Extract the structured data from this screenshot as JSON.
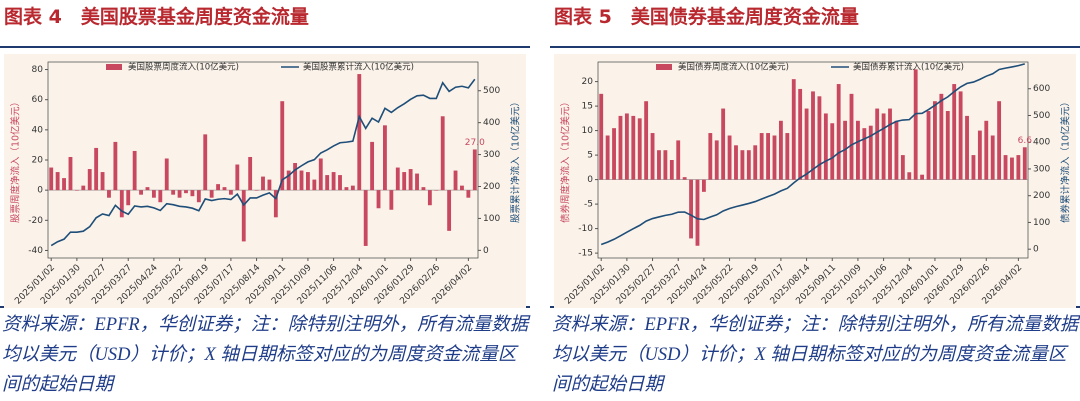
{
  "chart_data": [
    {
      "type": "bar",
      "title": "图表 4　美国股票基金周度资金流量",
      "y_label": "股票周度净流入（10亿美元）",
      "y2_label": "股票累计净流入（10亿美元）",
      "source": "资料来源：EPFR，华创证券；注：除特别注明外，所有流量数据均以美元（USD）计价；X 轴日期标签对应的为周度资金流量区间的起始日期",
      "categories": [
        "2025/01/02",
        null,
        null,
        null,
        "2025/01/30",
        null,
        null,
        null,
        "2025/02/27",
        null,
        null,
        null,
        "2025/03/27",
        null,
        null,
        null,
        "2025/04/24",
        null,
        null,
        null,
        "2025/05/22",
        null,
        null,
        null,
        "2025/06/19",
        null,
        null,
        null,
        "2025/07/17",
        null,
        null,
        null,
        "2025/08/14",
        null,
        null,
        null,
        "2025/09/11",
        null,
        null,
        null,
        "2025/10/09",
        null,
        null,
        null,
        "2025/11/06",
        null,
        null,
        null,
        "2025/12/04",
        null,
        null,
        null,
        "2026/01/01",
        null,
        null,
        null,
        "2026/01/29",
        null,
        null,
        null,
        "2026/02/26",
        null,
        null,
        null,
        null,
        "2026/04/02",
        null
      ],
      "series": [
        {
          "name": "美国股票周度流入(10亿美元)",
          "type": "bar",
          "color": "#c8485f",
          "values": [
            15,
            12,
            8,
            22,
            0,
            3,
            14,
            28,
            12,
            -5,
            32,
            -18,
            -10,
            26,
            -3,
            2,
            -5,
            -8,
            21,
            -3,
            -5,
            -2,
            -4,
            -8,
            37,
            -5,
            4,
            2,
            -3,
            17,
            -34,
            22,
            0,
            9,
            7,
            -18,
            59,
            13,
            18,
            13,
            12,
            7,
            21,
            10,
            12,
            10,
            2,
            3,
            77,
            -37,
            32,
            -12,
            43,
            -13,
            15,
            12,
            14,
            11,
            2,
            -10,
            0,
            49,
            -27,
            13,
            3,
            -5,
            27
          ],
          "value_labels": [
            null,
            null,
            null,
            null,
            null,
            null,
            null,
            null,
            null,
            null,
            null,
            null,
            null,
            null,
            null,
            null,
            null,
            null,
            null,
            null,
            null,
            null,
            null,
            null,
            null,
            null,
            null,
            null,
            null,
            null,
            null,
            null,
            null,
            null,
            null,
            null,
            null,
            null,
            null,
            null,
            null,
            null,
            null,
            null,
            null,
            null,
            null,
            null,
            null,
            null,
            null,
            null,
            null,
            null,
            null,
            null,
            null,
            null,
            null,
            null,
            null,
            null,
            null,
            null,
            null,
            null,
            "27.0"
          ]
        },
        {
          "name": "美国股票累计流入(10亿美元)",
          "type": "line",
          "axis": "y2",
          "color": "#1f4e79",
          "values": [
            15,
            27,
            35,
            57,
            57,
            60,
            74,
            102,
            114,
            109,
            141,
            123,
            113,
            139,
            136,
            138,
            133,
            125,
            146,
            143,
            138,
            136,
            132,
            124,
            161,
            156,
            160,
            162,
            159,
            176,
            142,
            164,
            164,
            173,
            180,
            162,
            221,
            234,
            252,
            265,
            277,
            284,
            305,
            315,
            327,
            337,
            339,
            342,
            419,
            382,
            414,
            402,
            445,
            432,
            447,
            459,
            473,
            484,
            486,
            476,
            476,
            525,
            498,
            511,
            514,
            509,
            536
          ]
        }
      ],
      "ylim": [
        -45,
        85
      ],
      "yticks": [
        -40,
        -20,
        0,
        20,
        40,
        60,
        80
      ],
      "y2lim": [
        -24,
        590
      ],
      "y2ticks": [
        0,
        100,
        200,
        300,
        400,
        500
      ],
      "grid": false
    },
    {
      "type": "bar",
      "title": "图表 5　美国债券基金周度资金流量",
      "y_label": "债券周度净流入（10亿美元）",
      "y2_label": "债券累计净流入（10亿美元）",
      "source": "资料来源：EPFR，华创证券；注：除特别注明外，所有流量数据均以美元（USD）计价；X 轴日期标签对应的为周度资金流量区间的起始日期",
      "categories": [
        "2025/01/02",
        null,
        null,
        null,
        "2025/01/30",
        null,
        null,
        null,
        "2025/02/27",
        null,
        null,
        null,
        "2025/03/27",
        null,
        null,
        null,
        "2025/04/24",
        null,
        null,
        null,
        "2025/05/22",
        null,
        null,
        null,
        "2025/06/19",
        null,
        null,
        null,
        "2025/07/17",
        null,
        null,
        null,
        "2025/08/14",
        null,
        null,
        null,
        "2025/09/11",
        null,
        null,
        null,
        "2025/10/09",
        null,
        null,
        null,
        "2025/11/06",
        null,
        null,
        null,
        "2025/12/04",
        null,
        null,
        null,
        "2026/01/01",
        null,
        null,
        null,
        "2026/01/29",
        null,
        null,
        null,
        "2026/02/26",
        null,
        null,
        null,
        null,
        "2026/04/02",
        null
      ],
      "series": [
        {
          "name": "美国债券周度流入(10亿美元)",
          "type": "bar",
          "color": "#c8485f",
          "values": [
            17.5,
            9,
            10.5,
            13,
            13.5,
            13,
            12.5,
            16,
            9.5,
            6,
            6,
            4,
            8,
            0.5,
            -12,
            -13.5,
            -2.5,
            9.5,
            8,
            14.5,
            9,
            7,
            6,
            6,
            7,
            9.5,
            9.5,
            9,
            12,
            9.5,
            20.5,
            18.5,
            14.5,
            18,
            17,
            13.5,
            11.5,
            19.5,
            12,
            17.5,
            12,
            10.5,
            11,
            14.5,
            13.5,
            14.5,
            12,
            5,
            1.5,
            22.5,
            1,
            14,
            16,
            17.5,
            14,
            19.5,
            18,
            13,
            5,
            10,
            12,
            9,
            16,
            5,
            4.5,
            5,
            6.6
          ],
          "value_labels": [
            null,
            null,
            null,
            null,
            null,
            null,
            null,
            null,
            null,
            null,
            null,
            null,
            null,
            null,
            null,
            null,
            null,
            null,
            null,
            null,
            null,
            null,
            null,
            null,
            null,
            null,
            null,
            null,
            null,
            null,
            null,
            null,
            null,
            null,
            null,
            null,
            null,
            null,
            null,
            null,
            null,
            null,
            null,
            null,
            null,
            null,
            null,
            null,
            null,
            null,
            null,
            null,
            null,
            null,
            null,
            null,
            null,
            null,
            null,
            null,
            null,
            null,
            null,
            null,
            null,
            null,
            "6.6"
          ]
        },
        {
          "name": "美国债券累计流入(10亿美元)",
          "type": "line",
          "axis": "y2",
          "color": "#1f4e79",
          "values": [
            17.5,
            26.5,
            37,
            50,
            63.5,
            76.5,
            89,
            105,
            114.5,
            120.5,
            126.5,
            130.5,
            138.5,
            139,
            127,
            113.5,
            111,
            120.5,
            128.5,
            143,
            152,
            159,
            165,
            171,
            178,
            187.5,
            197,
            206,
            218,
            227.5,
            248,
            266.5,
            281,
            299,
            316,
            329.5,
            341,
            360.5,
            372.5,
            390,
            402,
            412.5,
            423.5,
            438,
            451.5,
            466,
            478,
            483,
            484.5,
            507,
            508,
            522,
            538,
            555.5,
            569.5,
            589,
            607,
            620,
            625,
            635,
            647,
            656,
            672,
            677,
            681.5,
            686.5,
            693.1
          ]
        }
      ],
      "ylim": [
        -16,
        24
      ],
      "yticks": [
        -15,
        -10,
        -5,
        0,
        5,
        10,
        15,
        20
      ],
      "y2lim": [
        -33,
        700
      ],
      "y2ticks": [
        0,
        100,
        200,
        300,
        400,
        500,
        600
      ],
      "grid": false
    }
  ]
}
